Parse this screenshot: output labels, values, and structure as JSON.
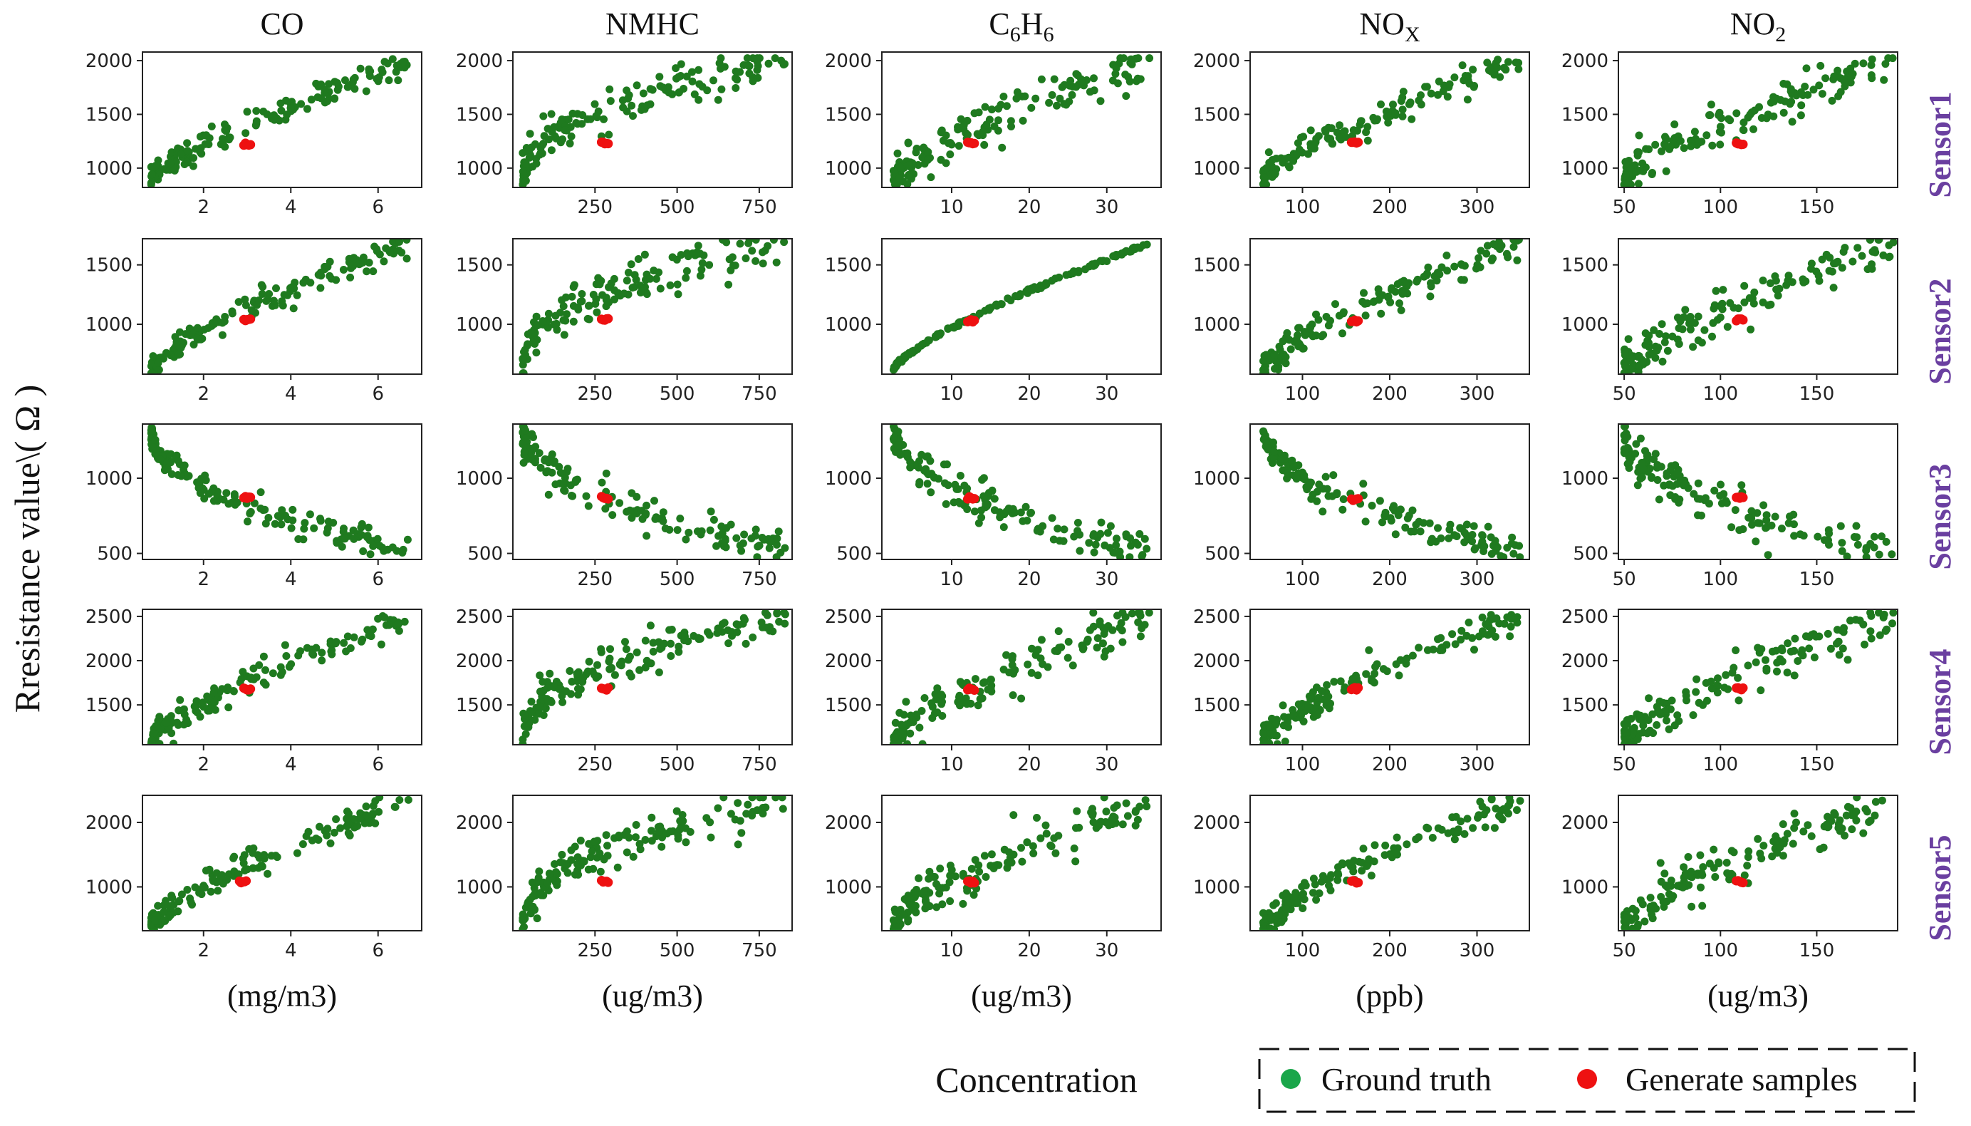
{
  "figure": {
    "ylabel": "Rresistance value\\( Ω )",
    "xlabel": "Concentration",
    "legend": {
      "items": [
        {
          "label": "Ground truth",
          "color": "#1aa64a"
        },
        {
          "label": "Generate samples",
          "color": "#ee1111"
        }
      ]
    },
    "colors": {
      "ground_truth_point": "#1f7a1f",
      "generated_point": "#ee1111",
      "row_label": "#6a3fa0"
    }
  },
  "columns": [
    {
      "id": "co",
      "title": "CO",
      "unit": "(mg/m3)",
      "xlim": [
        0.6,
        7.0
      ],
      "xticks": [
        2,
        4,
        6
      ],
      "xticklabels": [
        "2",
        "4",
        "6"
      ],
      "xmin_data": 0.8,
      "xmax_data": 6.7,
      "gen_x": 3.0
    },
    {
      "id": "nmhc",
      "title": "NMHC",
      "unit": "(ug/m3)",
      "xlim": [
        0,
        850
      ],
      "xticks": [
        250,
        500,
        750
      ],
      "xticklabels": [
        "250",
        "500",
        "750"
      ],
      "xmin_data": 30,
      "xmax_data": 830,
      "gen_x": 280
    },
    {
      "id": "c6h6",
      "title": "C6H6",
      "title_parts": {
        "a": "C",
        "sub_a": "6",
        "b": "H",
        "sub_b": "6"
      },
      "unit": "(ug/m3)",
      "xlim": [
        1,
        37
      ],
      "xticks": [
        10,
        20,
        30
      ],
      "xticklabels": [
        "10",
        "20",
        "30"
      ],
      "xmin_data": 2.5,
      "xmax_data": 35.5,
      "gen_x": 12.5
    },
    {
      "id": "nox",
      "title": "NOX",
      "title_parts": {
        "a": "NO",
        "sub_a": "X"
      },
      "unit": "(ppb)",
      "xlim": [
        40,
        360
      ],
      "xticks": [
        100,
        200,
        300
      ],
      "xticklabels": [
        "100",
        "200",
        "300"
      ],
      "xmin_data": 55,
      "xmax_data": 350,
      "gen_x": 160
    },
    {
      "id": "no2",
      "title": "NO2",
      "title_parts": {
        "a": "NO",
        "sub_a": "2"
      },
      "unit": "(ug/m3)",
      "xlim": [
        47,
        192
      ],
      "xticks": [
        50,
        100,
        150
      ],
      "xticklabels": [
        "50",
        "100",
        "150"
      ],
      "xmin_data": 50,
      "xmax_data": 190,
      "gen_x": 110
    }
  ],
  "rows": [
    {
      "id": "sensor1",
      "label": "Sensor1",
      "ylim": [
        820,
        2080
      ],
      "yticks": [
        1000,
        1500,
        2000
      ],
      "yticklabels": [
        "1000",
        "1500",
        "2000"
      ],
      "ymin": 880,
      "ymax": 1990,
      "gen_y": 1220,
      "trend": "increasing"
    },
    {
      "id": "sensor2",
      "label": "Sensor2",
      "ylim": [
        580,
        1720
      ],
      "yticks": [
        1000,
        1500
      ],
      "yticklabels": [
        "1000",
        "1500"
      ],
      "ymin": 620,
      "ymax": 1680,
      "gen_y": 1040,
      "trend": "increasing"
    },
    {
      "id": "sensor3",
      "label": "Sensor3",
      "ylim": [
        460,
        1360
      ],
      "yticks": [
        500,
        1000
      ],
      "yticklabels": [
        "500",
        "1000"
      ],
      "ymin": 500,
      "ymax": 1320,
      "gen_y": 870,
      "trend": "decreasing"
    },
    {
      "id": "sensor4",
      "label": "Sensor4",
      "ylim": [
        1050,
        2580
      ],
      "yticks": [
        1500,
        2000,
        2500
      ],
      "yticklabels": [
        "1500",
        "2000",
        "2500"
      ],
      "ymin": 1100,
      "ymax": 2500,
      "gen_y": 1680,
      "trend": "increasing"
    },
    {
      "id": "sensor5",
      "label": "Sensor5",
      "ylim": [
        320,
        2420
      ],
      "yticks": [
        1000,
        2000
      ],
      "yticklabels": [
        "1000",
        "2000"
      ],
      "ymin": 400,
      "ymax": 2330,
      "gen_y": 1080,
      "trend": "increasing"
    }
  ],
  "chart_data": {
    "type": "scatter",
    "title": "",
    "xlabel": "Concentration",
    "ylabel": "Rresistance value\\( Ω )",
    "layout": "5x5 grid of scatter panels (rows: sensors, columns: gases)",
    "series": [
      {
        "name": "Ground truth",
        "description": "approx. 150 measured samples per panel"
      },
      {
        "name": "Generate samples",
        "description": "small cluster of generated points per panel"
      }
    ],
    "generated_points": {
      "sensor1": {
        "CO": [
          3.0,
          1220
        ],
        "NMHC": [
          280,
          1230
        ],
        "C6H6": [
          12.5,
          1230
        ],
        "NOX": [
          160,
          1240
        ],
        "NO2": [
          110,
          1225
        ]
      },
      "sensor2": {
        "CO": [
          3.0,
          1040
        ],
        "NMHC": [
          280,
          1040
        ],
        "C6H6": [
          12.5,
          1030
        ],
        "NOX": [
          160,
          1030
        ],
        "NO2": [
          110,
          1040
        ]
      },
      "sensor3": {
        "CO": [
          3.0,
          870
        ],
        "NMHC": [
          280,
          870
        ],
        "C6H6": [
          12.5,
          870
        ],
        "NOX": [
          160,
          860
        ],
        "NO2": [
          110,
          870
        ]
      },
      "sensor4": {
        "CO": [
          3.0,
          1680
        ],
        "NMHC": [
          280,
          1680
        ],
        "C6H6": [
          12.5,
          1680
        ],
        "NOX": [
          160,
          1680
        ],
        "NO2": [
          110,
          1680
        ]
      },
      "sensor5": {
        "CO": [
          2.9,
          1080
        ],
        "NMHC": [
          280,
          1080
        ],
        "C6H6": [
          12.5,
          1080
        ],
        "NOX": [
          160,
          1080
        ],
        "NO2": [
          110,
          1080
        ]
      }
    }
  }
}
